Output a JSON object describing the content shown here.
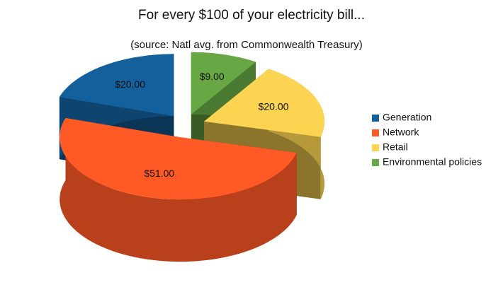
{
  "chart_data": {
    "type": "pie",
    "title": "For every $100 of your electricity bill...",
    "subtitle": "(source: Natl avg. from Commonwealth Treasury)",
    "categories": [
      "Generation",
      "Network",
      "Retail",
      "Environmental policies"
    ],
    "values": [
      20,
      51,
      20,
      9
    ],
    "value_labels": [
      "$20.00",
      "$51.00",
      "$20.00",
      "$9.00"
    ],
    "colors": [
      "#13609c",
      "#ff5a26",
      "#fdd451",
      "#67a844"
    ],
    "legend": "right"
  }
}
